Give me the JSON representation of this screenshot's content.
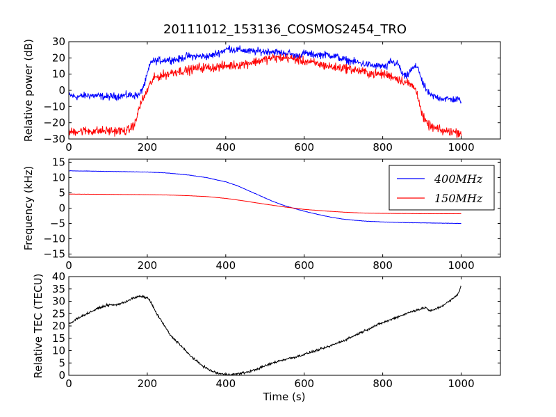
{
  "figure": {
    "title": "20111012_153136_COSMOS2454_TRO",
    "xlabel": "Time (s)"
  },
  "chart_data": [
    {
      "type": "line",
      "title": "20111012_153136_COSMOS2454_TRO",
      "xlabel": "",
      "ylabel": "Relative power (dB)",
      "xlim": [
        0,
        1100
      ],
      "ylim": [
        -30,
        30
      ],
      "xticks": [
        0,
        200,
        400,
        600,
        800,
        1000
      ],
      "yticks": [
        -30,
        -20,
        -10,
        0,
        10,
        20,
        30
      ],
      "grid": false,
      "series": [
        {
          "color": "#0000ff",
          "noise": 2.0,
          "x": [
            0,
            20,
            50,
            100,
            150,
            180,
            195,
            200,
            210,
            220,
            250,
            280,
            300,
            330,
            360,
            390,
            410,
            420,
            440,
            460,
            480,
            500,
            520,
            540,
            560,
            580,
            600,
            620,
            640,
            660,
            680,
            700,
            720,
            740,
            760,
            780,
            800,
            810,
            820,
            830,
            840,
            850,
            860,
            870,
            880,
            890,
            900,
            920,
            950,
            1000
          ],
          "values": [
            -3,
            -4,
            -3,
            -4,
            -3,
            -3,
            5,
            10,
            18,
            18,
            19,
            19,
            21,
            21,
            21,
            24,
            26,
            25,
            25,
            24,
            24,
            24,
            24,
            23,
            23,
            21,
            23,
            22,
            22,
            22,
            21,
            19,
            18,
            17,
            16,
            15,
            15,
            14,
            18,
            17,
            16,
            10,
            8,
            12,
            14,
            15,
            5,
            -3,
            -5,
            -6
          ]
        },
        {
          "color": "#ff0000",
          "noise": 2.5,
          "x": [
            0,
            20,
            50,
            100,
            150,
            170,
            180,
            190,
            200,
            210,
            220,
            250,
            280,
            300,
            330,
            360,
            400,
            440,
            480,
            500,
            520,
            540,
            560,
            580,
            600,
            620,
            640,
            660,
            680,
            700,
            720,
            740,
            760,
            780,
            800,
            820,
            840,
            860,
            880,
            890,
            900,
            910,
            920,
            950,
            1000
          ],
          "values": [
            -26,
            -25,
            -25,
            -25,
            -25,
            -20,
            -10,
            -5,
            0,
            5,
            8,
            10,
            12,
            12,
            14,
            14,
            15,
            16,
            18,
            19,
            20,
            20,
            20,
            19,
            18,
            17,
            16,
            15,
            14,
            14,
            13,
            12,
            11,
            10,
            10,
            9,
            7,
            5,
            2,
            -3,
            -15,
            -20,
            -22,
            -25,
            -26
          ]
        }
      ]
    },
    {
      "type": "line",
      "title": "",
      "xlabel": "",
      "ylabel": "Frequency (kHz)",
      "xlim": [
        0,
        1100
      ],
      "ylim": [
        -16,
        16
      ],
      "xticks": [
        0,
        200,
        400,
        600,
        800,
        1000
      ],
      "yticks": [
        -15,
        -10,
        -5,
        0,
        5,
        10,
        15
      ],
      "grid": false,
      "legend": "top-right",
      "series": [
        {
          "name": "400MHz",
          "color": "#0000ff",
          "noise": 0.05,
          "x": [
            0,
            100,
            200,
            250,
            300,
            350,
            400,
            430,
            460,
            490,
            520,
            550,
            580,
            610,
            640,
            670,
            700,
            750,
            800,
            850,
            900,
            950,
            1000
          ],
          "values": [
            12.2,
            12.0,
            11.8,
            11.5,
            10.9,
            10.0,
            8.6,
            7.3,
            5.6,
            3.9,
            2.2,
            0.8,
            -0.3,
            -1.3,
            -2.2,
            -3.0,
            -3.6,
            -4.2,
            -4.5,
            -4.7,
            -4.8,
            -4.9,
            -5.0
          ]
        },
        {
          "name": "150MHz",
          "color": "#ff0000",
          "noise": 0.03,
          "x": [
            0,
            100,
            200,
            250,
            300,
            350,
            400,
            450,
            500,
            550,
            600,
            650,
            700,
            750,
            800,
            900,
            1000
          ],
          "values": [
            4.6,
            4.5,
            4.4,
            4.3,
            4.1,
            3.8,
            3.2,
            2.3,
            1.3,
            0.4,
            -0.4,
            -0.9,
            -1.3,
            -1.6,
            -1.7,
            -1.8,
            -1.8
          ]
        }
      ]
    },
    {
      "type": "line",
      "title": "",
      "xlabel": "Time (s)",
      "ylabel": "Relative TEC (TECU)",
      "xlim": [
        0,
        1100
      ],
      "ylim": [
        0,
        40
      ],
      "xticks": [
        0,
        200,
        400,
        600,
        800,
        1000
      ],
      "yticks": [
        0,
        5,
        10,
        15,
        20,
        25,
        30,
        35,
        40
      ],
      "grid": false,
      "series": [
        {
          "color": "#000000",
          "noise": 0.4,
          "x": [
            0,
            10,
            20,
            40,
            60,
            80,
            100,
            120,
            140,
            160,
            180,
            200,
            210,
            220,
            240,
            260,
            280,
            300,
            320,
            340,
            360,
            380,
            400,
            420,
            440,
            460,
            480,
            500,
            520,
            540,
            560,
            580,
            600,
            620,
            640,
            660,
            680,
            700,
            720,
            740,
            760,
            780,
            800,
            820,
            840,
            860,
            880,
            900,
            910,
            920,
            930,
            950,
            970,
            990,
            1000
          ],
          "values": [
            21,
            21.5,
            23,
            24.5,
            26,
            27.5,
            28.5,
            28.5,
            29.5,
            31,
            32,
            31.5,
            29.5,
            26,
            21,
            16,
            13,
            9.5,
            6.5,
            4,
            2,
            0.8,
            0.3,
            0.4,
            0.8,
            1.5,
            2.5,
            3.8,
            5,
            6,
            6.8,
            7.5,
            8.5,
            9.5,
            10.5,
            11.5,
            12.8,
            14,
            15.5,
            17,
            18.5,
            20,
            21.3,
            22.5,
            23.8,
            25,
            26.2,
            27,
            27.5,
            26,
            26.5,
            28,
            30,
            32.5,
            36
          ]
        }
      ]
    }
  ]
}
